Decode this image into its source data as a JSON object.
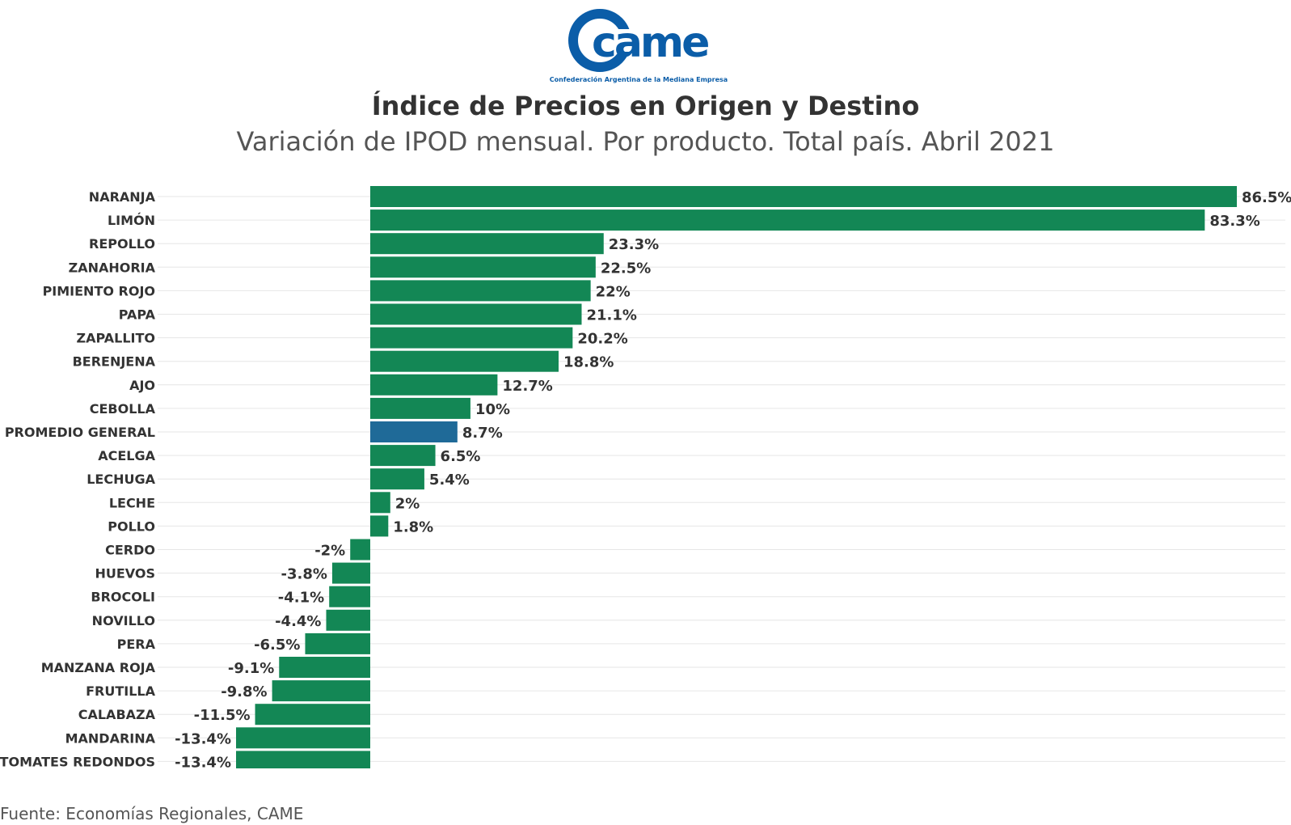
{
  "logo": {
    "text": "came",
    "tagline": "Confederación Argentina de la Mediana Empresa"
  },
  "colors": {
    "bar": "#138755",
    "highlight": "#1f6a98",
    "brand_blue": "#0b5da8",
    "grid": "#e6e6e6"
  },
  "source": "Fuente: Economías Regionales, CAME",
  "chart_data": {
    "type": "bar",
    "orientation": "horizontal",
    "title": "Índice de Precios en Origen y Destino",
    "subtitle": "Variación de IPOD mensual. Por producto. Total país. Abril 2021",
    "categories": [
      "NARANJA",
      "LIMÓN",
      "REPOLLO",
      "ZANAHORIA",
      "PIMIENTO ROJO",
      "PAPA",
      "ZAPALLITO",
      "BERENJENA",
      "AJO",
      "CEBOLLA",
      "PROMEDIO GENERAL",
      "ACELGA",
      "LECHUGA",
      "LECHE",
      "POLLO",
      "CERDO",
      "HUEVOS",
      "BROCOLI",
      "NOVILLO",
      "PERA",
      "MANZANA ROJA",
      "FRUTILLA",
      "CALABAZA",
      "MANDARINA",
      "TOMATES REDONDOS"
    ],
    "values": [
      86.5,
      83.3,
      23.3,
      22.5,
      22,
      21.1,
      20.2,
      18.8,
      12.7,
      10,
      8.7,
      6.5,
      5.4,
      2,
      1.8,
      -2,
      -3.8,
      -4.1,
      -4.4,
      -6.5,
      -9.1,
      -9.8,
      -11.5,
      -13.4,
      -13.4
    ],
    "labels": [
      "86.5%",
      "83.3%",
      "23.3%",
      "22.5%",
      "22%",
      "21.1%",
      "20.2%",
      "18.8%",
      "12.7%",
      "10%",
      "8.7%",
      "6.5%",
      "5.4%",
      "2%",
      "1.8%",
      "-2%",
      "-3.8%",
      "-4.1%",
      "-4.4%",
      "-6.5%",
      "-9.1%",
      "-9.8%",
      "-11.5%",
      "-13.4%",
      "-13.4%"
    ],
    "highlight": "PROMEDIO GENERAL",
    "xlim": [
      -13.4,
      86.5
    ],
    "unit": "%",
    "grid": true,
    "legend": "none"
  }
}
